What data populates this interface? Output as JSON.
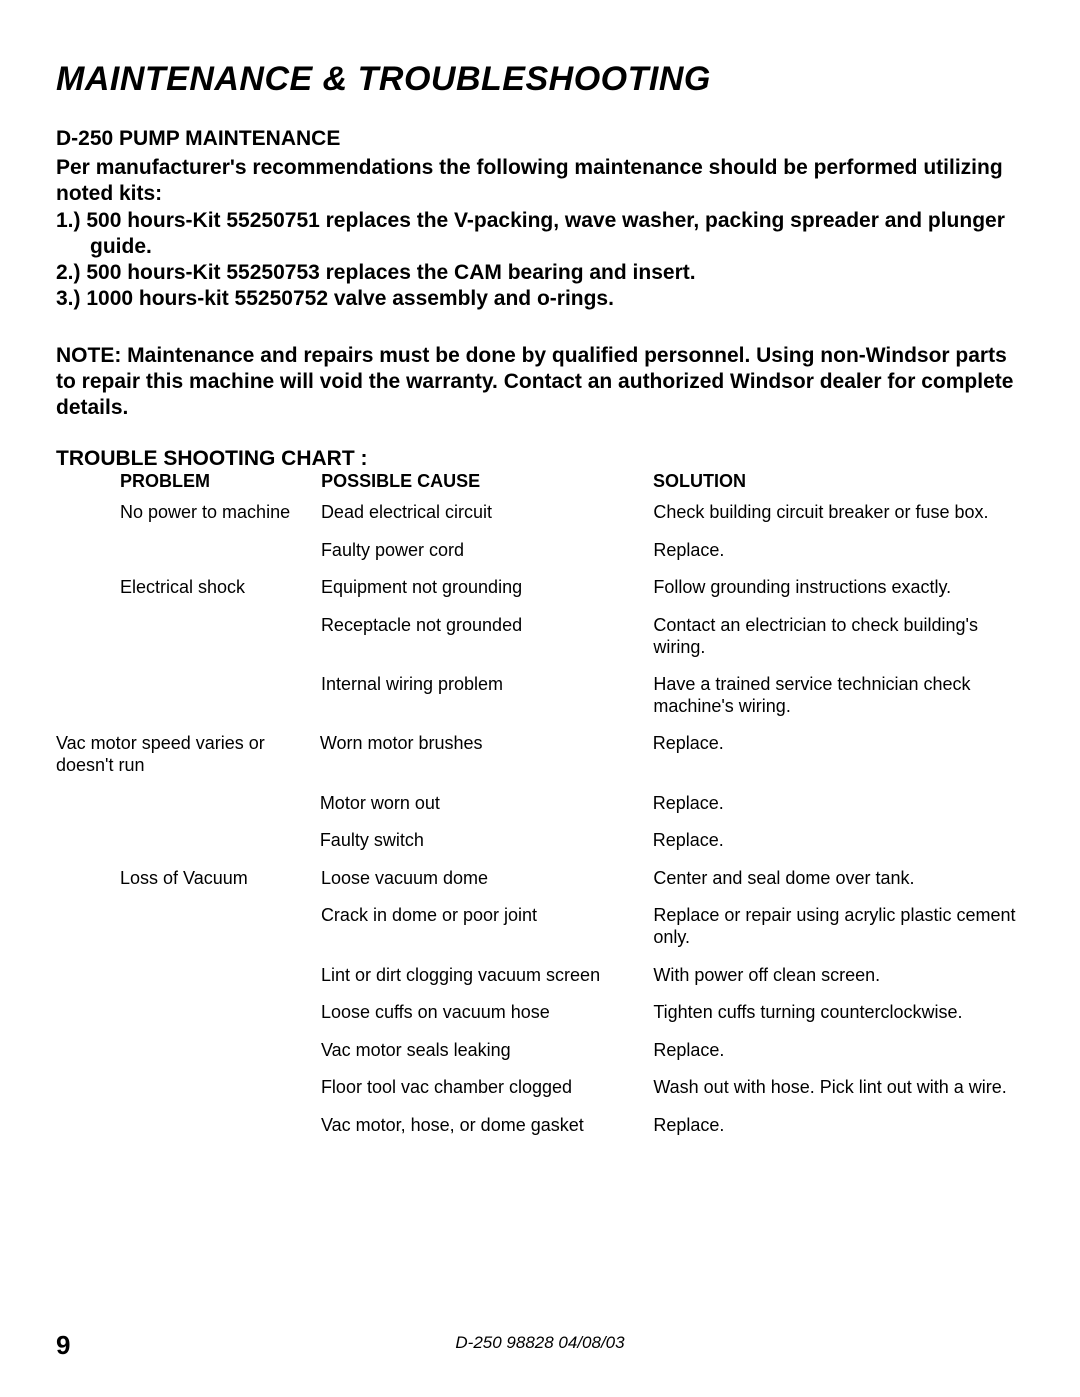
{
  "title": "MAINTENANCE  & TROUBLESHOOTING",
  "subheading": "D-250 PUMP MAINTENANCE",
  "intro": "Per manufacturer's recommendations the following maintenance should be performed utilizing noted kits:",
  "kits": [
    "1.)   500 hours-Kit 55250751 replaces the V-packing, wave washer, packing spreader and plunger guide.",
    "2.)   500 hours-Kit 55250753 replaces the CAM bearing and insert.",
    "3.)   1000 hours-kit 55250752 valve assembly and o-rings."
  ],
  "note": "NOTE:  Maintenance and repairs must be done by qualified personnel.  Using non-Windsor parts to repair this machine will void the warranty.  Contact an authorized Windsor dealer for complete details.",
  "chart_heading": "TROUBLE SHOOTING CHART :",
  "columns": {
    "problem": "PROBLEM",
    "cause": "POSSIBLE CAUSE",
    "solution": "SOLUTION"
  },
  "troubleshooting": [
    {
      "problem": "No power to machine",
      "leftmost": false,
      "rows": [
        {
          "cause": "Dead electrical circuit",
          "solution": "Check building circuit breaker or fuse box."
        },
        {
          "cause": "Faulty power cord",
          "solution": "Replace."
        }
      ]
    },
    {
      "problem": "Electrical shock",
      "leftmost": false,
      "rows": [
        {
          "cause": "Equipment not grounding",
          "solution": "Follow grounding instructions exactly."
        },
        {
          "cause": "Receptacle not grounded",
          "solution": "Contact an electrician to check building's wiring."
        },
        {
          "cause": "Internal wiring problem",
          "solution": "Have a trained service technician check machine's wiring."
        }
      ]
    },
    {
      "problem": "Vac motor speed varies or doesn't run",
      "leftmost": true,
      "rows": [
        {
          "cause": "Worn motor brushes",
          "solution": "Replace."
        },
        {
          "cause": "Motor worn out",
          "solution": "Replace."
        },
        {
          "cause": "Faulty switch",
          "solution": "Replace."
        }
      ]
    },
    {
      "problem": "Loss of Vacuum",
      "leftmost": false,
      "rows": [
        {
          "cause": "Loose vacuum dome",
          "solution": "Center and seal dome over tank."
        },
        {
          "cause": "Crack in dome or poor joint",
          "solution": "Replace or repair using acrylic plastic cement only."
        },
        {
          "cause": "Lint or dirt clogging vacuum screen",
          "solution": "With power off clean screen."
        },
        {
          "cause": "Loose cuffs on vacuum hose",
          "solution": "Tighten cuffs turning counterclockwise."
        },
        {
          "cause": "Vac motor seals leaking",
          "solution": "Replace."
        },
        {
          "cause": "Floor tool vac chamber clogged",
          "solution": "Wash out with hose.  Pick lint out with a  wire."
        },
        {
          "cause": "Vac motor, hose, or dome gasket",
          "solution": "Replace."
        }
      ]
    }
  ],
  "footer": "D-250  98828  04/08/03",
  "page_number": "9"
}
